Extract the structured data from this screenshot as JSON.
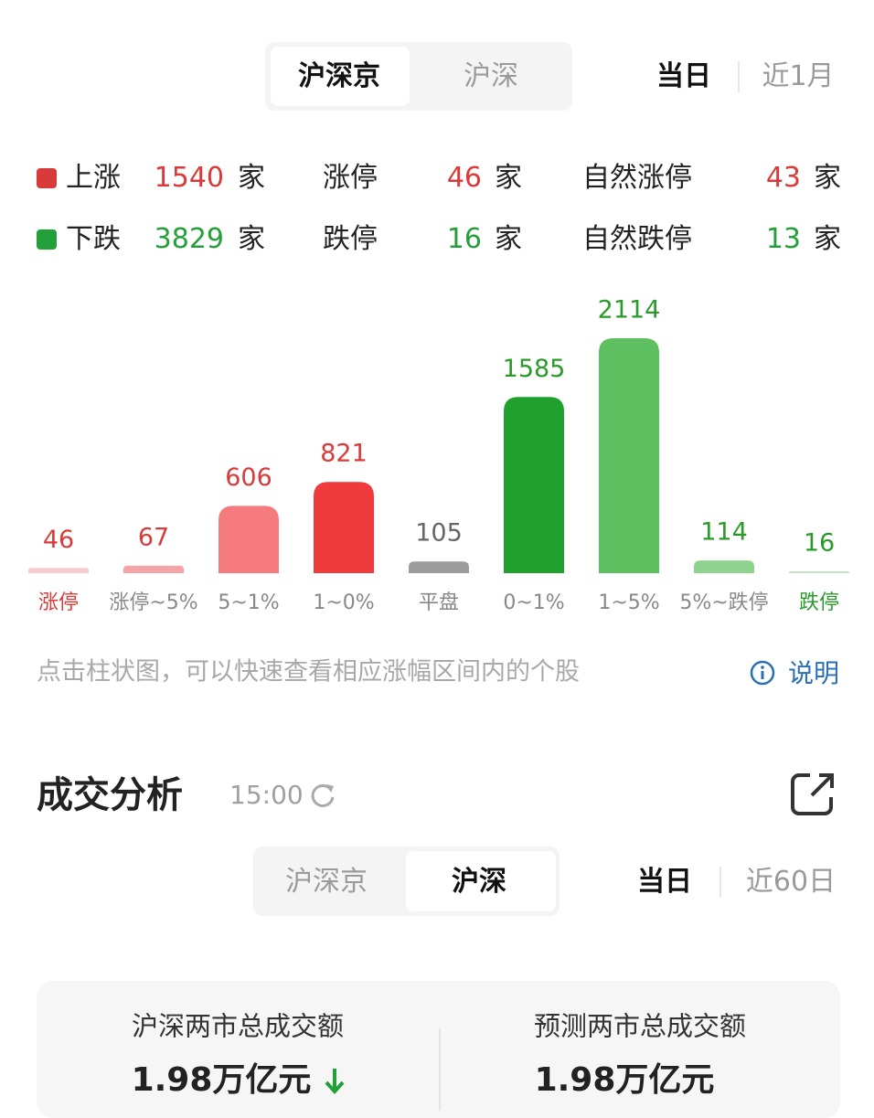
{
  "market_tabs": [
    "沪深京",
    "沪深"
  ],
  "period_tabs": [
    "当日",
    "近1月"
  ],
  "stats": [
    {
      "color": "#d93a3a",
      "items": [
        {
          "label": "上涨",
          "count": 1540,
          "unit": "家"
        },
        {
          "label": "涨停",
          "count": 46,
          "unit": "家"
        },
        {
          "label": "自然涨停",
          "count": 43,
          "unit": "家"
        }
      ]
    },
    {
      "color": "#23a03a",
      "items": [
        {
          "label": "下跌",
          "count": 3829,
          "unit": "家"
        },
        {
          "label": "跌停",
          "count": 16,
          "unit": "家"
        },
        {
          "label": "自然跌停",
          "count": 13,
          "unit": "家"
        }
      ]
    }
  ],
  "chart_data": {
    "type": "bar",
    "categories": [
      "涨停",
      "涨停~5%",
      "5~1%",
      "1~0%",
      "平盘",
      "0~1%",
      "1~5%",
      "5%~跌停",
      "跌停"
    ],
    "values": [
      46,
      67,
      606,
      821,
      105,
      1585,
      2114,
      114,
      16
    ],
    "colors": [
      "#f8c8ca",
      "#f4a3a6",
      "#f57b7f",
      "#f03b3d",
      "#9c9c9c",
      "#1fa02f",
      "#5dbf5f",
      "#8fd48e",
      "#bfe6bd"
    ],
    "value_label_colors": [
      "#d93a3a",
      "#d93a3a",
      "#d93a3a",
      "#d93a3a",
      "#666666",
      "#2a9a2a",
      "#2a9a2a",
      "#2a9a2a",
      "#2a9a2a"
    ],
    "category_label_colors": [
      "#d93a3a",
      "#888888",
      "#888888",
      "#888888",
      "#888888",
      "#888888",
      "#888888",
      "#888888",
      "#2a9a2a"
    ]
  },
  "hint": "点击柱状图，可以快速查看相应涨幅区间内的个股",
  "help": "说明",
  "section": {
    "title": "成交分析",
    "time": "15:00",
    "market_tabs": [
      "沪深京",
      "沪深"
    ],
    "period_tabs": [
      "当日",
      "近60日"
    ],
    "cards": [
      {
        "label": "沪深两市总成交额",
        "value": "1.98万亿元"
      },
      {
        "label": "预测两市总成交额",
        "value": "1.98万亿元"
      }
    ]
  }
}
